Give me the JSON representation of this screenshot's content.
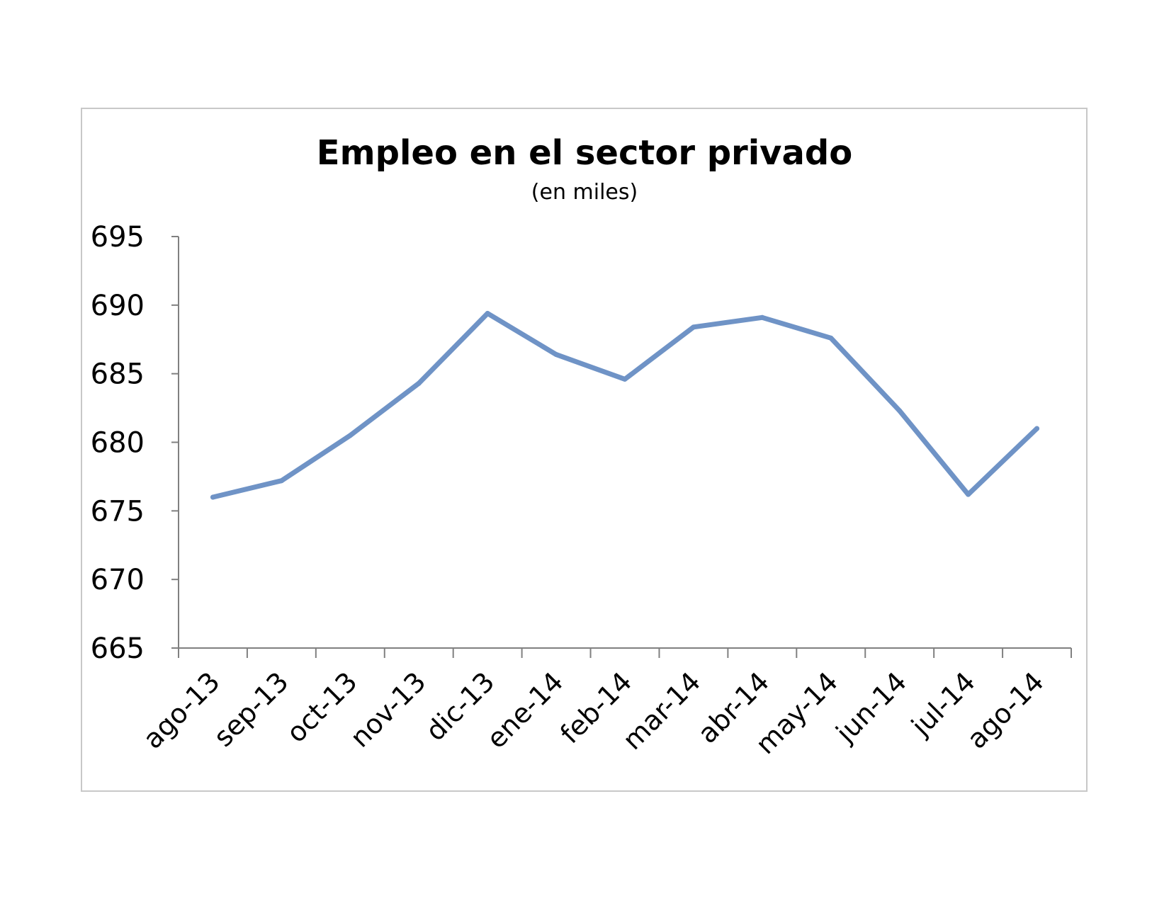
{
  "chart_data": {
    "type": "line",
    "title": "Empleo en el sector privado",
    "subtitle": "(en miles)",
    "xlabel": "",
    "ylabel": "",
    "categories": [
      "ago-13",
      "sep-13",
      "oct-13",
      "nov-13",
      "dic-13",
      "ene-14",
      "feb-14",
      "mar-14",
      "abr-14",
      "may-14",
      "jun-14",
      "jul-14",
      "ago-14"
    ],
    "series": [
      {
        "values": [
          676.0,
          677.2,
          680.5,
          684.3,
          689.4,
          686.4,
          684.6,
          688.4,
          689.1,
          687.6,
          682.3,
          676.2,
          681.0
        ],
        "color": "#6f93c6"
      }
    ],
    "ylim": [
      665,
      695
    ],
    "yticks": [
      665,
      670,
      675,
      680,
      685,
      690,
      695
    ],
    "grid": false,
    "legend": "none"
  }
}
